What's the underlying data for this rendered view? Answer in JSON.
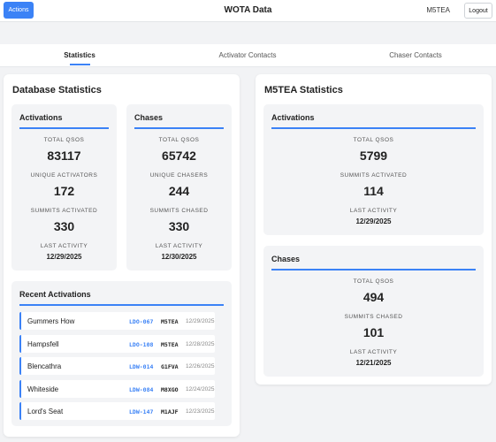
{
  "header": {
    "actions_label": "Actions",
    "title": "WOTA Data",
    "callsign": "M5TEA",
    "logout_label": "Logout"
  },
  "tabs": [
    {
      "label": "Statistics",
      "active": true
    },
    {
      "label": "Activator Contacts",
      "active": false
    },
    {
      "label": "Chaser Contacts",
      "active": false
    }
  ],
  "database": {
    "title": "Database Statistics",
    "activations": {
      "title": "Activations",
      "total_qsos_label": "TOTAL QSOS",
      "total_qsos": "83117",
      "unique_activators_label": "UNIQUE ACTIVATORS",
      "unique_activators": "172",
      "summits_activated_label": "SUMMITS ACTIVATED",
      "summits_activated": "330",
      "last_activity_label": "LAST ACTIVITY",
      "last_activity": "12/29/2025"
    },
    "chases": {
      "title": "Chases",
      "total_qsos_label": "TOTAL QSOS",
      "total_qsos": "65742",
      "unique_chasers_label": "UNIQUE CHASERS",
      "unique_chasers": "244",
      "summits_chased_label": "SUMMITS CHASED",
      "summits_chased": "330",
      "last_activity_label": "LAST ACTIVITY",
      "last_activity": "12/30/2025"
    },
    "recent": {
      "title": "Recent Activations",
      "rows": [
        {
          "name": "Gummers How",
          "ref": "LDO-067",
          "call": "M5TEA",
          "date": "12/29/2025"
        },
        {
          "name": "Hampsfell",
          "ref": "LDO-108",
          "call": "M5TEA",
          "date": "12/28/2025"
        },
        {
          "name": "Blencathra",
          "ref": "LDW-014",
          "call": "G1FVA",
          "date": "12/26/2025"
        },
        {
          "name": "Whiteside",
          "ref": "LDW-084",
          "call": "M8XGO",
          "date": "12/24/2025"
        },
        {
          "name": "Lord's Seat",
          "ref": "LDW-147",
          "call": "M1AJF",
          "date": "12/23/2025"
        }
      ]
    }
  },
  "user": {
    "title": "M5TEA Statistics",
    "activations": {
      "title": "Activations",
      "total_qsos_label": "TOTAL QSOS",
      "total_qsos": "5799",
      "summits_activated_label": "SUMMITS ACTIVATED",
      "summits_activated": "114",
      "last_activity_label": "LAST ACTIVITY",
      "last_activity": "12/29/2025"
    },
    "chases": {
      "title": "Chases",
      "total_qsos_label": "TOTAL QSOS",
      "total_qsos": "494",
      "summits_chased_label": "SUMMITS CHASED",
      "summits_chased": "101",
      "last_activity_label": "LAST ACTIVITY",
      "last_activity": "12/21/2025"
    }
  },
  "colors": {
    "accent": "#3b82f6",
    "background": "#f2f3f5",
    "card": "#f3f4f6"
  }
}
